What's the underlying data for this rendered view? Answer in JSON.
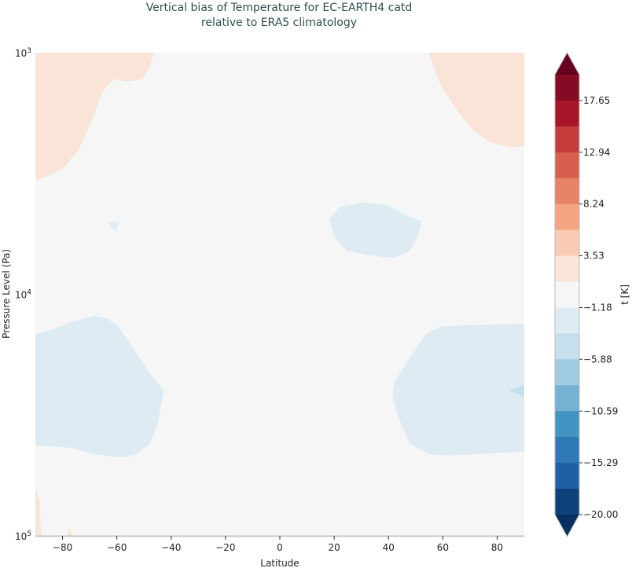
{
  "chart_data": {
    "type": "contourf",
    "title": "Vertical bias of Temperature for EC-EARTH4 catd",
    "subtitle": "relative to ERA5 climatology",
    "xlabel": "Latitude",
    "ylabel": "Pressure Level (Pa)",
    "xlim": [
      -90,
      90
    ],
    "ylim_log10": [
      3,
      5
    ],
    "yscale": "log",
    "y_inverted": true,
    "xticks": [
      -80,
      -60,
      -40,
      -20,
      0,
      20,
      40,
      60,
      80
    ],
    "yticks": [
      {
        "value": 3,
        "base": "10",
        "exp": "3"
      },
      {
        "value": 4,
        "base": "10",
        "exp": "4"
      },
      {
        "value": 5,
        "base": "10",
        "exp": "5"
      }
    ],
    "colorbar": {
      "label": "t [K]",
      "vmin": -20.0,
      "vmax": 20.0,
      "extend": "both",
      "tick_values": [
        17.65,
        12.94,
        8.24,
        3.53,
        -1.18,
        -5.88,
        -10.59,
        -15.29,
        -20.0
      ],
      "tick_labels": [
        "17.65",
        "12.94",
        "8.24",
        "3.53",
        "−1.18",
        "−5.88",
        "−10.59",
        "−15.29",
        "−20.00"
      ],
      "over_color": "#67001f",
      "under_color": "#053061",
      "band_colors_high_to_low": [
        "#850a24",
        "#a81529",
        "#c43c3c",
        "#d6604d",
        "#e58267",
        "#f4a582",
        "#f9cbb5",
        "#fbe5d8",
        "#f6f6f6",
        "#dfebf3",
        "#c6dfed",
        "#9fcae1",
        "#75b1d3",
        "#4393c3",
        "#2f79b5",
        "#1f5fa4",
        "#0e4079"
      ]
    },
    "background_level_color": "#f6f6f6",
    "regions": [
      {
        "name": "sh-upper-warm",
        "color": "#fae4d8",
        "range": "-1.18 to 1.18+",
        "points": [
          [
            -90,
            3
          ],
          [
            -46.5,
            3
          ],
          [
            -47.9,
            3.06
          ],
          [
            -50.8,
            3.11
          ],
          [
            -56.6,
            3.12
          ],
          [
            -61,
            3.11
          ],
          [
            -65.3,
            3.16
          ],
          [
            -68.8,
            3.27
          ],
          [
            -74,
            3.4
          ],
          [
            -79.8,
            3.48
          ],
          [
            -85.6,
            3.51
          ],
          [
            -90,
            3.53
          ]
        ]
      },
      {
        "name": "nh-upper-warm",
        "color": "#fae4d8",
        "points": [
          [
            54.6,
            3
          ],
          [
            59.5,
            3.14
          ],
          [
            65.3,
            3.24
          ],
          [
            71.1,
            3.32
          ],
          [
            76.9,
            3.37
          ],
          [
            84.2,
            3.39
          ],
          [
            90,
            3.39
          ],
          [
            90,
            3
          ]
        ]
      },
      {
        "name": "tropical-upper-cold",
        "color": "#dfebf3",
        "points": [
          [
            18.3,
            3.69
          ],
          [
            21.8,
            3.64
          ],
          [
            30.5,
            3.62
          ],
          [
            39.2,
            3.63
          ],
          [
            47.9,
            3.68
          ],
          [
            52.2,
            3.7
          ],
          [
            50.8,
            3.76
          ],
          [
            47.9,
            3.82
          ],
          [
            42.1,
            3.85
          ],
          [
            33.4,
            3.84
          ],
          [
            24.7,
            3.82
          ],
          [
            20.3,
            3.77
          ]
        ]
      },
      {
        "name": "sh-small-cold",
        "color": "#dfebf3",
        "points": [
          [
            -63.3,
            3.7
          ],
          [
            -58.9,
            3.7
          ],
          [
            -60.7,
            3.74
          ]
        ]
      },
      {
        "name": "sh-mid-cold",
        "color": "#dfebf3",
        "points": [
          [
            -90,
            4.164
          ],
          [
            -85.6,
            4.154
          ],
          [
            -76.9,
            4.115
          ],
          [
            -68.2,
            4.089
          ],
          [
            -63.9,
            4.099
          ],
          [
            -59.5,
            4.132
          ],
          [
            -53.7,
            4.229
          ],
          [
            -47.9,
            4.327
          ],
          [
            -42.7,
            4.398
          ],
          [
            -45,
            4.538
          ],
          [
            -47.9,
            4.62
          ],
          [
            -53.7,
            4.668
          ],
          [
            -59.5,
            4.675
          ],
          [
            -68.2,
            4.662
          ],
          [
            -76.9,
            4.636
          ],
          [
            -85.6,
            4.629
          ],
          [
            -90,
            4.626
          ]
        ]
      },
      {
        "name": "nh-mid-cold",
        "color": "#dfebf3",
        "points": [
          [
            90,
            4.122
          ],
          [
            59.5,
            4.132
          ],
          [
            53.7,
            4.164
          ],
          [
            47.9,
            4.262
          ],
          [
            42.1,
            4.366
          ],
          [
            41.5,
            4.424
          ],
          [
            43.5,
            4.506
          ],
          [
            47.9,
            4.62
          ],
          [
            55.2,
            4.662
          ],
          [
            62.4,
            4.668
          ],
          [
            76.9,
            4.659
          ],
          [
            90,
            4.652
          ]
        ]
      },
      {
        "name": "nh-mid-colder",
        "color": "#c6dfed",
        "points": [
          [
            84.2,
            4.398
          ],
          [
            90,
            4.376
          ],
          [
            90,
            4.424
          ]
        ]
      },
      {
        "name": "sh-surface-warm-1",
        "color": "#fae4d8",
        "points": [
          [
            -90,
            4.8
          ],
          [
            -88.5,
            4.85
          ],
          [
            -87.9,
            5
          ],
          [
            -90,
            5
          ]
        ]
      },
      {
        "name": "sh-surface-warm-2",
        "color": "#fae4d8",
        "points": [
          [
            -77.5,
            4.97
          ],
          [
            -76.1,
            5
          ],
          [
            -78.2,
            5
          ]
        ]
      }
    ]
  }
}
